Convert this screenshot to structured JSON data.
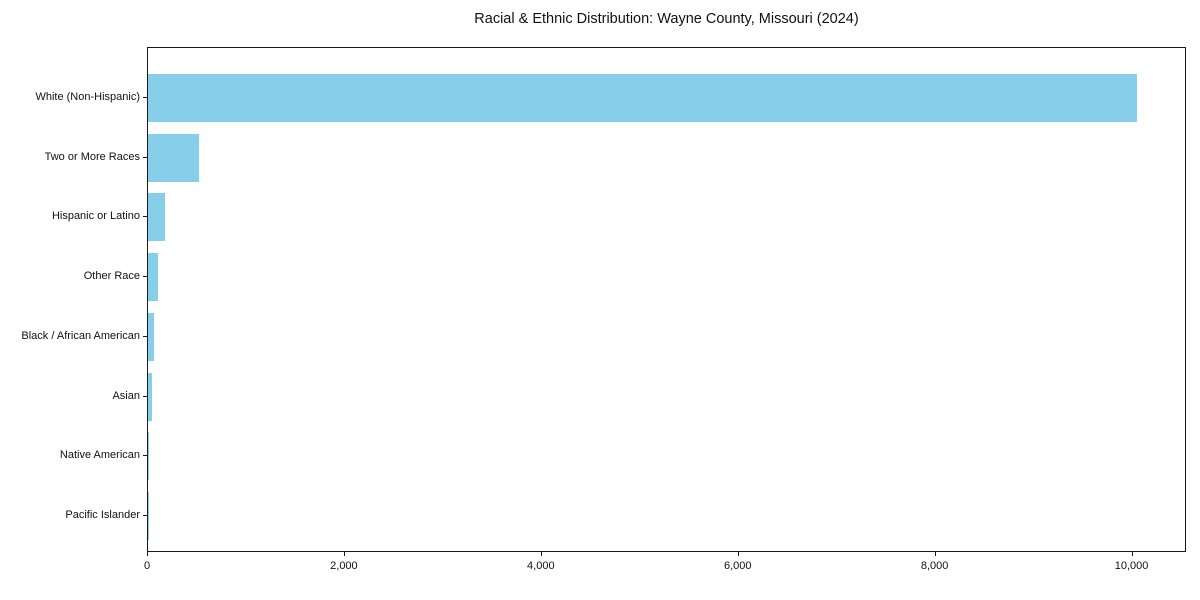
{
  "chart_data": {
    "type": "bar",
    "orientation": "horizontal",
    "title": "Racial & Ethnic Distribution: Wayne County, Missouri (2024)",
    "categories": [
      "White (Non-Hispanic)",
      "Two or More Races",
      "Hispanic or Latino",
      "Other Race",
      "Black / African American",
      "Asian",
      "Native American",
      "Pacific Islander"
    ],
    "values": [
      10050,
      515,
      170,
      100,
      60,
      40,
      10,
      3
    ],
    "xlabel": "",
    "ylabel": "",
    "xlim": [
      0,
      10553
    ],
    "x_ticks": [
      0,
      2000,
      4000,
      6000,
      8000,
      10000
    ],
    "x_tick_labels": [
      "0",
      "2,000",
      "4,000",
      "6,000",
      "8,000",
      "10,000"
    ],
    "bar_color": "#87ceeb",
    "plot_border_color": "#1a1a1a",
    "background_color": "#ffffff",
    "grid": false,
    "legend": null
  }
}
